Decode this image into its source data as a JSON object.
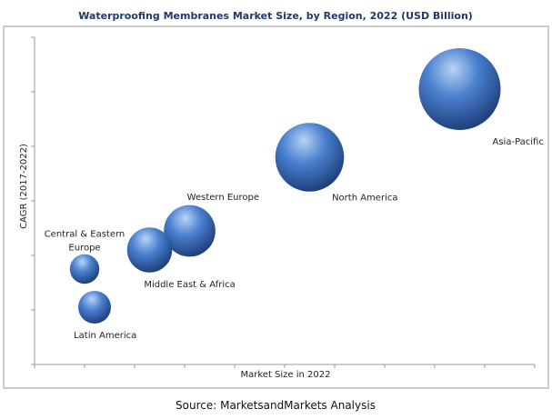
{
  "colors": {
    "bubble_light": "#b9d4f5",
    "bubble_mid": "#4a80cf",
    "bubble_dark": "#1d3e78",
    "frame": "#9a9a9a",
    "title": "#1f3a6b"
  },
  "source": "Source: MarketsandMarkets Analysis",
  "chart_data": {
    "type": "bubble",
    "title": "Waterproofing Membranes Market Size, by Region, 2022 (USD Billion)",
    "xlabel": "Market Size in 2022",
    "ylabel": "CAGR (2017-2022)",
    "xlim": [
      0,
      10
    ],
    "ylim": [
      0,
      6
    ],
    "grid": false,
    "legend": "none",
    "series": [
      {
        "points": [
          {
            "label": "Asia-Pacific",
            "x": 8.5,
            "y": 5.05,
            "size": 1.0
          },
          {
            "label": "North America",
            "x": 5.5,
            "y": 3.8,
            "size": 0.84
          },
          {
            "label": "Western Europe",
            "x": 3.1,
            "y": 2.45,
            "size": 0.63
          },
          {
            "label": "Middle East & Africa",
            "x": 2.3,
            "y": 2.1,
            "size": 0.55
          },
          {
            "label": "Central & Eastern Europe",
            "x": 1.0,
            "y": 1.75,
            "size": 0.36
          },
          {
            "label": "Latin America",
            "x": 1.2,
            "y": 1.05,
            "size": 0.4
          }
        ]
      }
    ]
  }
}
